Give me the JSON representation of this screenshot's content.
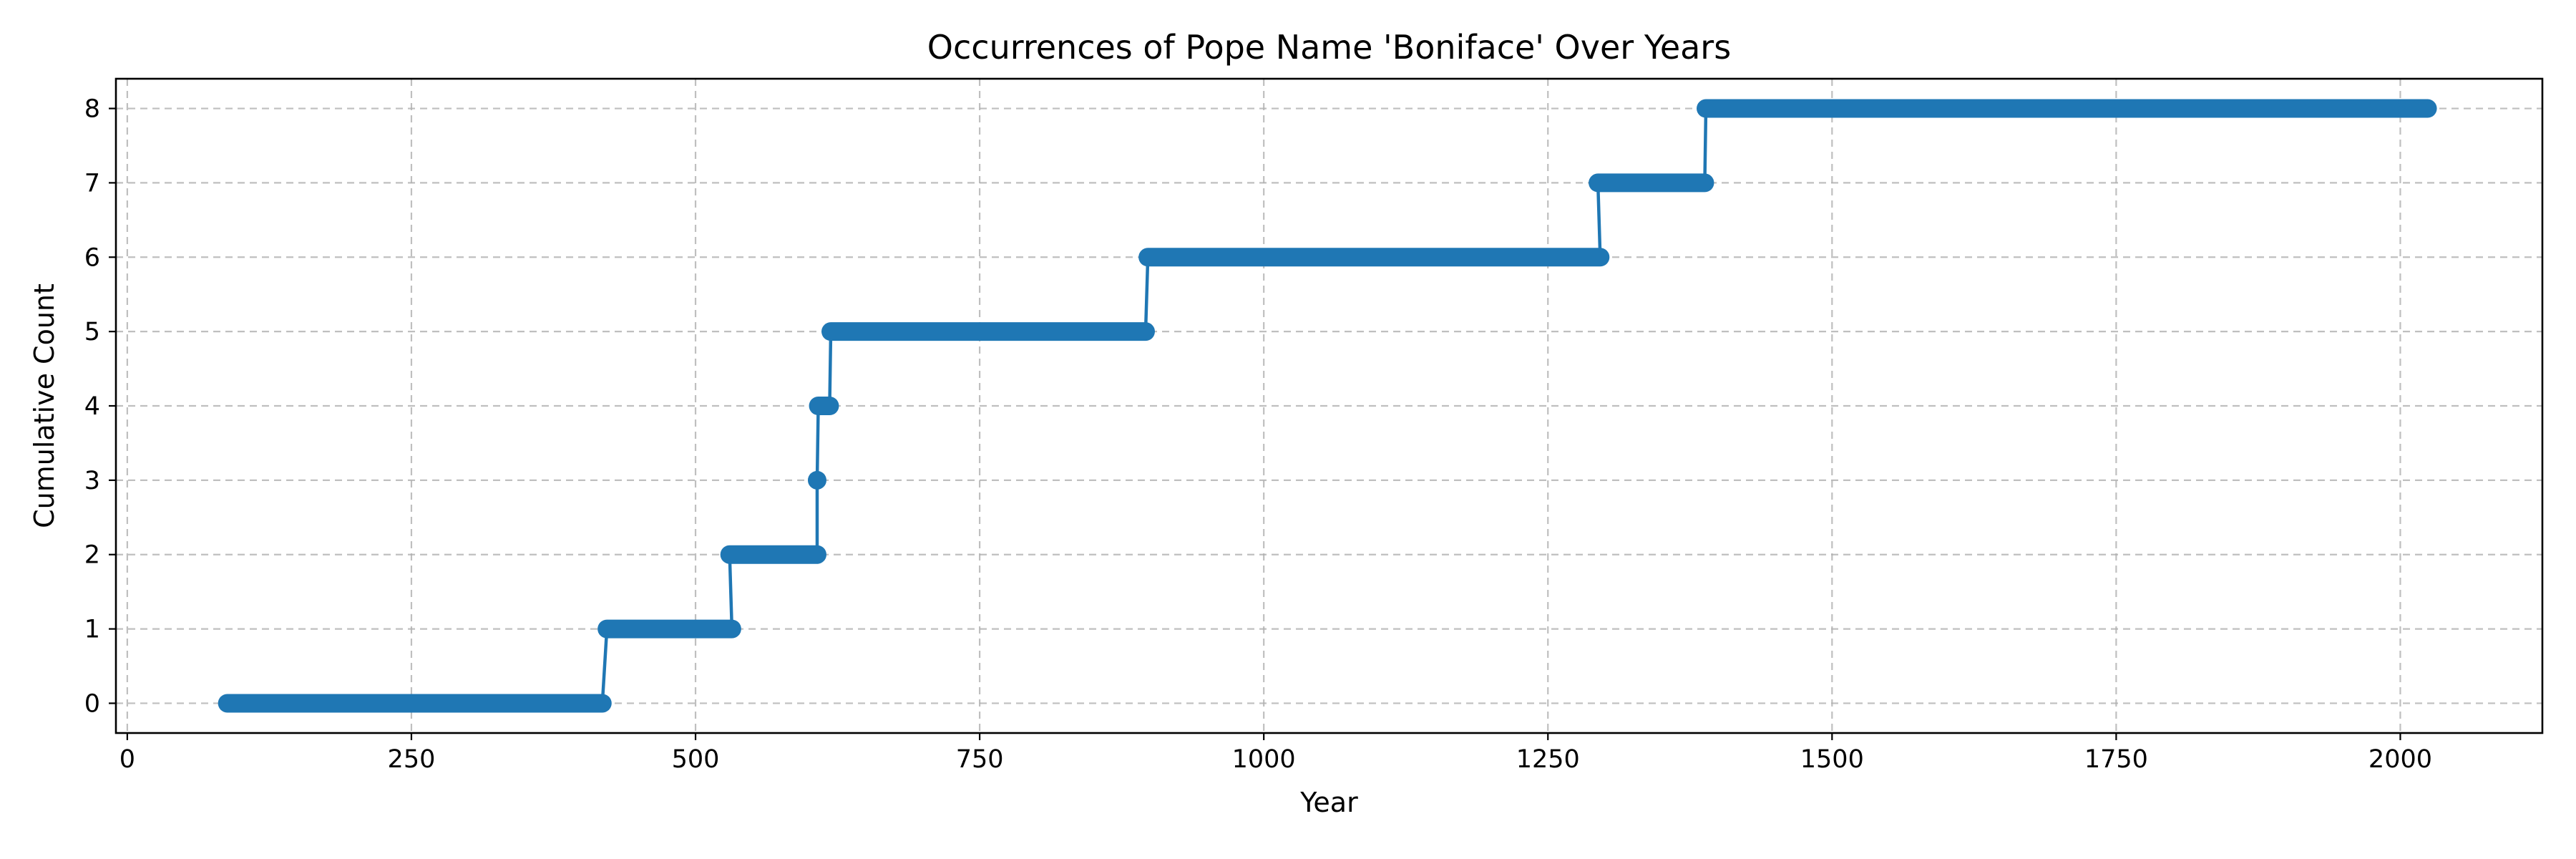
{
  "chart_data": {
    "type": "line",
    "title": "Occurrences of Pope Name 'Boniface' Over Years",
    "xlabel": "Year",
    "ylabel": "Cumulative Count",
    "xlim": [
      -10,
      2125
    ],
    "ylim": [
      -0.4,
      8.4
    ],
    "x_ticks": [
      0,
      250,
      500,
      750,
      1000,
      1250,
      1500,
      1750,
      2000
    ],
    "y_ticks": [
      0,
      1,
      2,
      3,
      4,
      5,
      6,
      7,
      8
    ],
    "grid": true,
    "legend": "none",
    "series": [
      {
        "color": "#1f77b4",
        "segments": [
          {
            "start": 88,
            "end": 418,
            "value": 0
          },
          {
            "start": 422,
            "end": 532,
            "value": 1
          },
          {
            "start": 530,
            "end": 607,
            "value": 2
          },
          {
            "start": 607,
            "end": 607,
            "value": 3
          },
          {
            "start": 608,
            "end": 618,
            "value": 4
          },
          {
            "start": 619,
            "end": 896,
            "value": 5
          },
          {
            "start": 898,
            "end": 1296,
            "value": 6
          },
          {
            "start": 1294,
            "end": 1388,
            "value": 7
          },
          {
            "start": 1389,
            "end": 2024,
            "value": 8
          }
        ]
      }
    ]
  }
}
